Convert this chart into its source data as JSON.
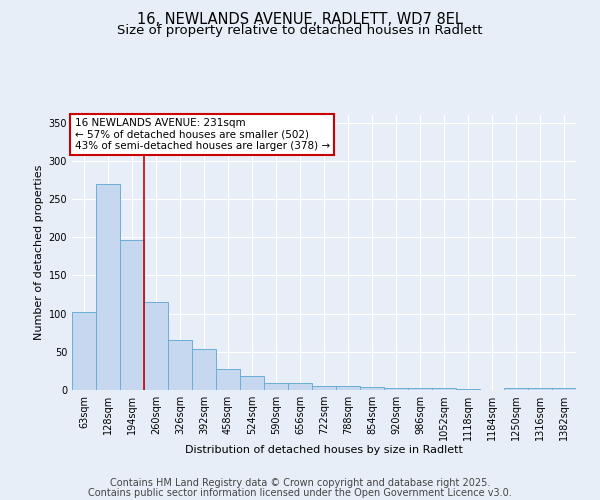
{
  "title1": "16, NEWLANDS AVENUE, RADLETT, WD7 8EL",
  "title2": "Size of property relative to detached houses in Radlett",
  "xlabel": "Distribution of detached houses by size in Radlett",
  "ylabel": "Number of detached properties",
  "categories": [
    "63sqm",
    "128sqm",
    "194sqm",
    "260sqm",
    "326sqm",
    "392sqm",
    "458sqm",
    "524sqm",
    "590sqm",
    "656sqm",
    "722sqm",
    "788sqm",
    "854sqm",
    "920sqm",
    "986sqm",
    "1052sqm",
    "1118sqm",
    "1184sqm",
    "1250sqm",
    "1316sqm",
    "1382sqm"
  ],
  "values": [
    102,
    270,
    197,
    115,
    65,
    54,
    27,
    18,
    9,
    9,
    5,
    5,
    4,
    3,
    3,
    2,
    1,
    0,
    3,
    3,
    2
  ],
  "bar_color": "#c5d8f0",
  "bar_edge_color": "#6baed6",
  "vline_position": 2.5,
  "vline_color": "#cc0000",
  "annotation_text": "16 NEWLANDS AVENUE: 231sqm\n← 57% of detached houses are smaller (502)\n43% of semi-detached houses are larger (378) →",
  "annotation_box_color": "white",
  "annotation_box_edge": "#cc0000",
  "ylim": [
    0,
    360
  ],
  "yticks": [
    0,
    50,
    100,
    150,
    200,
    250,
    300,
    350
  ],
  "footer1": "Contains HM Land Registry data © Crown copyright and database right 2025.",
  "footer2": "Contains public sector information licensed under the Open Government Licence v3.0.",
  "background_color": "#e8eef8",
  "grid_color": "#ffffff",
  "title_fontsize": 10.5,
  "subtitle_fontsize": 9.5,
  "axis_label_fontsize": 8,
  "tick_fontsize": 7,
  "annotation_fontsize": 7.5,
  "footer_fontsize": 7
}
